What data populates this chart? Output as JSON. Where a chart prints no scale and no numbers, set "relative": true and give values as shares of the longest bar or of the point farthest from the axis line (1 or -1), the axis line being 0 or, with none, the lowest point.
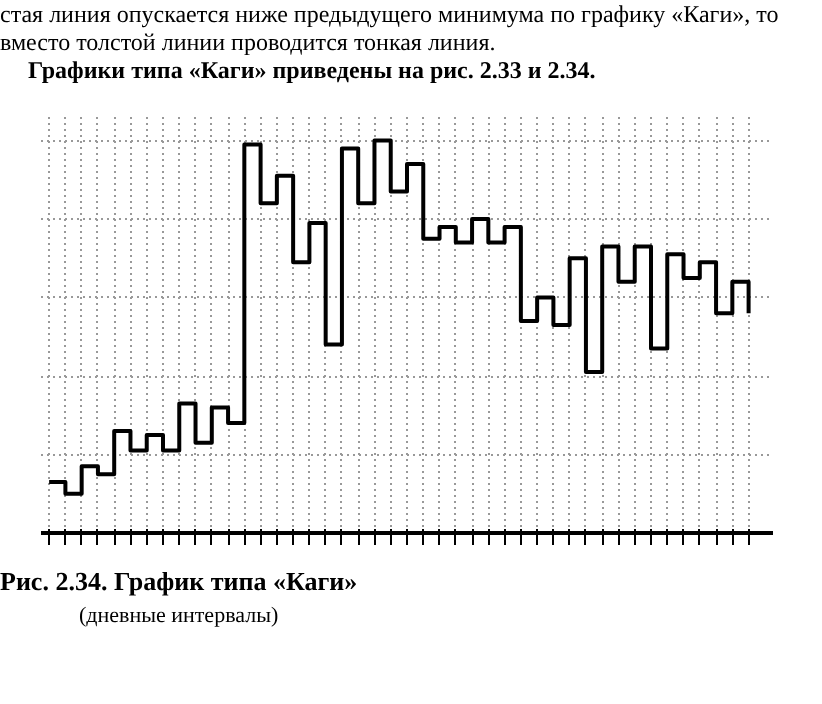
{
  "chart_data": {
    "type": "step",
    "title": "Рис. 2.34. График типа «Каги»",
    "subtitle": "(дневные интервалы)",
    "annotations": [
      "стая линия опускается ниже предыдущего минимума по графику «Каги», то вместо толстой линии проводится тонкая линия.",
      "Графики типа «Каги» приведены на рис. 2.33 и 2.34."
    ],
    "relative": true,
    "categories": [
      null,
      null,
      null,
      null,
      null,
      null,
      null,
      null,
      null,
      null,
      null,
      null,
      null,
      null,
      null,
      null,
      null,
      null,
      null,
      null,
      null,
      null,
      null,
      null,
      null,
      null,
      null,
      null,
      null,
      null,
      null,
      null,
      null,
      null,
      null,
      null,
      null,
      null,
      null,
      null,
      null,
      null,
      null,
      null
    ],
    "series": [
      {
        "color": "#000000",
        "values": [
          0.13,
          0.1,
          0.17,
          0.15,
          0.26,
          0.21,
          0.25,
          0.21,
          0.33,
          0.23,
          0.32,
          0.28,
          0.99,
          0.84,
          0.91,
          0.69,
          0.79,
          0.48,
          0.98,
          0.84,
          1.0,
          0.87,
          0.94,
          0.75,
          0.78,
          0.74,
          0.8,
          0.74,
          0.78,
          0.54,
          0.6,
          0.53,
          0.7,
          0.41,
          0.73,
          0.64,
          0.73,
          0.47,
          0.71,
          0.65,
          0.69,
          0.56,
          0.64,
          0.56
        ]
      }
    ],
    "grid": true,
    "line_style": "solid",
    "marker": "none"
  }
}
